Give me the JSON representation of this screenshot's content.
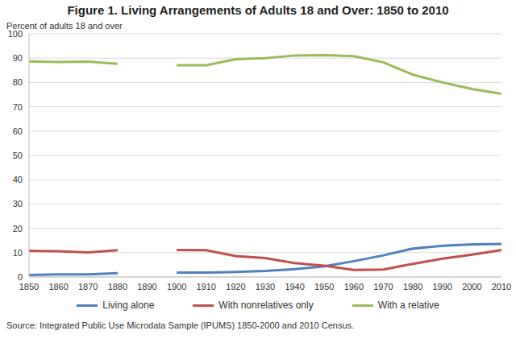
{
  "chart_data": {
    "type": "line",
    "title": "Figure 1. Living Arrangements of Adults 18 and Over: 1850 to 2010",
    "y_label": "Percent of adults 18 and over",
    "source": "Source: Integrated Public Use Microdata Sample (IPUMS) 1850-2000 and 2010 Census.",
    "categories": [
      "1850",
      "1860",
      "1870",
      "1880",
      "1890",
      "1900",
      "1910",
      "1920",
      "1930",
      "1940",
      "1950",
      "1960",
      "1970",
      "1980",
      "1990",
      "2000",
      "2010"
    ],
    "series": [
      {
        "name": "Living alone",
        "color": "#4f81bd",
        "values": [
          0.8,
          1.1,
          1.1,
          1.6,
          null,
          1.8,
          1.8,
          2.1,
          2.5,
          3.2,
          4.4,
          6.5,
          8.9,
          11.7,
          12.8,
          13.4,
          13.6
        ]
      },
      {
        "name": "With nonrelatives only",
        "color": "#c0504d",
        "values": [
          10.8,
          10.6,
          10.1,
          11.0,
          null,
          11.1,
          11.0,
          8.6,
          7.8,
          5.7,
          4.6,
          2.9,
          3.1,
          5.4,
          7.5,
          9.2,
          11.1
        ]
      },
      {
        "name": "With a relative",
        "color": "#9bbb59",
        "values": [
          88.7,
          88.4,
          88.6,
          87.7,
          null,
          87.1,
          87.1,
          89.6,
          90.0,
          91.1,
          91.2,
          90.8,
          88.3,
          83.2,
          80.0,
          77.3,
          75.3
        ]
      }
    ],
    "ylim": [
      0,
      100
    ],
    "yticks": [
      0,
      10,
      20,
      30,
      40,
      50,
      60,
      70,
      80,
      90,
      100
    ],
    "grid": true,
    "legend": "bottom"
  }
}
